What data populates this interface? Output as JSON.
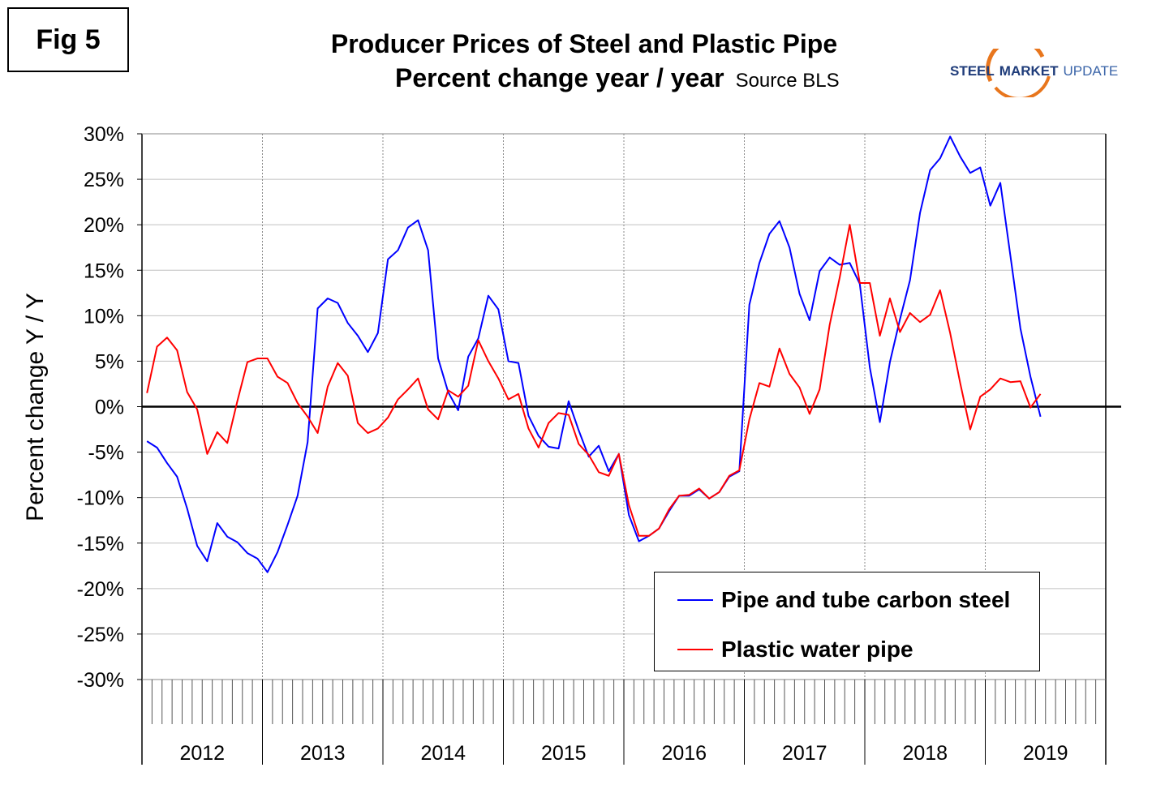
{
  "figure_label": "Fig 5",
  "title": "Producer Prices of Steel and Plastic Pipe",
  "subtitle": "Percent change year / year",
  "source": "Source BLS",
  "logo": {
    "word1": "STEEL",
    "word2": "MARKET",
    "word3": "UPDATE"
  },
  "colors": {
    "series1": "#0000ff",
    "series2": "#ff0000",
    "grid": "#c0c0c0",
    "axis": "#000000"
  },
  "chart_data": {
    "type": "line",
    "title": "Producer Prices of Steel and Plastic Pipe",
    "subtitle": "Percent change year / year",
    "ylabel": "Percent change Y / Y",
    "xlabel": "",
    "ylim": [
      -30,
      30
    ],
    "yticks": [
      30,
      25,
      20,
      15,
      10,
      5,
      0,
      -5,
      -10,
      -15,
      -20,
      -25,
      -30
    ],
    "ytick_labels": [
      "30%",
      "25%",
      "20%",
      "15%",
      "10%",
      "5%",
      "0%",
      "-5%",
      "-10%",
      "-15%",
      "-20%",
      "-25%",
      "-30%"
    ],
    "x_unit": "month",
    "x_start": "2012-01",
    "x_end": "2019-02",
    "year_labels": [
      "2012",
      "2013",
      "2014",
      "2015",
      "2016",
      "2017",
      "2018",
      "2019"
    ],
    "grid": true,
    "legend_position": "bottom-right",
    "series": [
      {
        "name": "Pipe and tube carbon steel",
        "color": "#0000ff",
        "values": [
          -3.8,
          -4.5,
          -6.2,
          -7.7,
          -11.2,
          -15.3,
          -17.0,
          -12.8,
          -14.3,
          -14.9,
          -16.1,
          -16.7,
          -18.2,
          -16.0,
          -13.0,
          -9.8,
          -3.9,
          10.8,
          11.9,
          11.4,
          9.2,
          7.8,
          6.0,
          8.1,
          16.2,
          17.2,
          19.7,
          20.5,
          17.2,
          5.3,
          1.6,
          -0.4,
          5.5,
          7.5,
          12.2,
          10.7,
          5.0,
          4.8,
          -1.0,
          -3.2,
          -4.4,
          -4.6,
          0.6,
          -2.6,
          -5.5,
          -4.3,
          -7.1,
          -5.2,
          -11.9,
          -14.8,
          -14.2,
          -13.4,
          -11.5,
          -9.8,
          -9.8,
          -9.1,
          -10.1,
          -9.4,
          -7.7,
          -7.1,
          11.2,
          15.8,
          19.0,
          20.4,
          17.5,
          12.4,
          9.5,
          14.9,
          16.4,
          15.6,
          15.8,
          13.5,
          4.3,
          -1.7,
          4.9,
          9.6,
          13.9,
          21.3,
          26.0,
          27.3,
          29.7,
          27.5,
          25.7,
          26.3,
          22.1,
          24.6,
          16.6,
          8.6,
          3.3,
          -1.1
        ],
        "x_index_start": 0
      },
      {
        "name": "Plastic water pipe",
        "color": "#ff0000",
        "values": [
          1.5,
          6.6,
          7.6,
          6.2,
          1.6,
          -0.3,
          -5.2,
          -2.8,
          -4.0,
          0.6,
          4.9,
          5.3,
          5.3,
          3.3,
          2.6,
          0.4,
          -1.1,
          -2.9,
          2.2,
          4.8,
          3.4,
          -1.8,
          -2.9,
          -2.4,
          -1.2,
          0.8,
          1.9,
          3.1,
          -0.3,
          -1.4,
          1.8,
          1.1,
          2.3,
          7.3,
          5.0,
          3.1,
          0.8,
          1.4,
          -2.4,
          -4.5,
          -1.8,
          -0.7,
          -0.9,
          -4.1,
          -5.3,
          -7.2,
          -7.6,
          -5.2,
          -10.8,
          -14.2,
          -14.2,
          -13.4,
          -11.3,
          -9.8,
          -9.7,
          -9.0,
          -10.1,
          -9.4,
          -7.6,
          -7.0,
          -1.4,
          2.6,
          2.2,
          6.4,
          3.6,
          2.1,
          -0.8,
          1.9,
          9.0,
          14.2,
          20.0,
          13.6,
          13.6,
          7.8,
          11.9,
          8.2,
          10.3,
          9.3,
          10.1,
          12.8,
          8.1,
          2.6,
          -2.5,
          1.1,
          1.9,
          3.1,
          2.7,
          2.8,
          -0.1,
          1.4
        ],
        "x_index_start": 0
      }
    ]
  }
}
